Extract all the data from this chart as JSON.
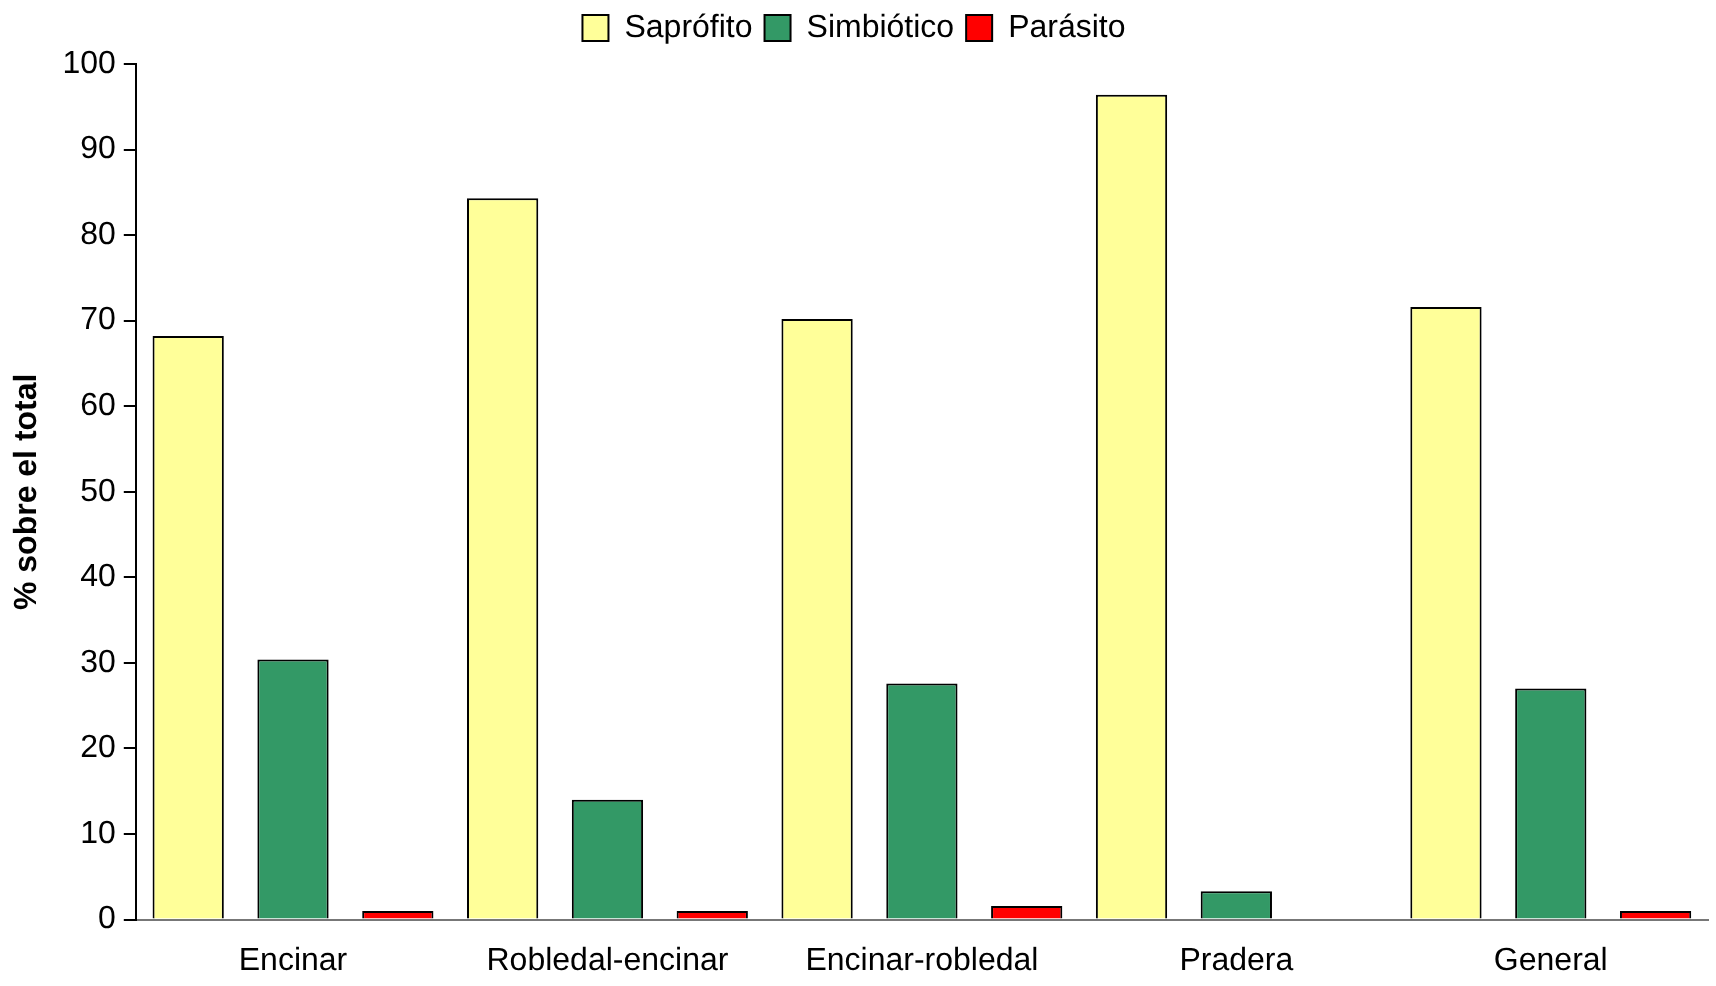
{
  "chart_data": {
    "type": "bar",
    "ylabel": "% sobre el total",
    "categories": [
      "Encinar",
      "Robledal-encinar",
      "Encinar-robledal",
      "Pradera",
      "General"
    ],
    "series": [
      {
        "name": "Saprófito",
        "color": "#ffff99",
        "values": [
          68.2,
          84.3,
          70.2,
          96.4,
          71.6
        ]
      },
      {
        "name": "Simbiótico",
        "color": "#339966",
        "values": [
          30.4,
          14.0,
          27.6,
          3.3,
          27.0
        ]
      },
      {
        "name": "Parásito",
        "color": "#ff0000",
        "values": [
          1.0,
          1.0,
          1.6,
          0,
          1.0
        ]
      }
    ],
    "ylim": [
      0,
      100
    ],
    "yticks": [
      0,
      10,
      20,
      30,
      40,
      50,
      60,
      70,
      80,
      90,
      100
    ],
    "grid": false,
    "legend": "top"
  }
}
